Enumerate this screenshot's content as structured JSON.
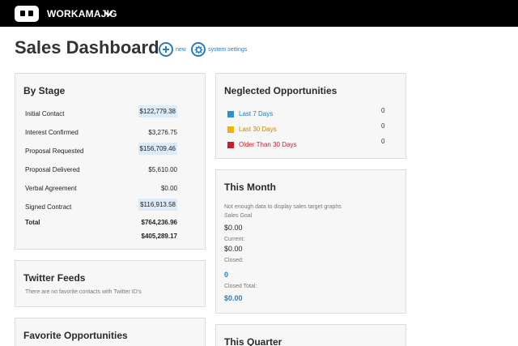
{
  "app": {
    "name": "WORKAMAJIG"
  },
  "page": {
    "title": "Sales Dashboard",
    "actions": [
      {
        "label": "new",
        "icon": "plus-icon"
      },
      {
        "label": "system settings",
        "icon": "gear-icon"
      }
    ]
  },
  "by_stage": {
    "title": "By Stage",
    "rows": [
      {
        "label": "Initial Contact",
        "value": "$122,779.38"
      },
      {
        "label": "Interest Confirmed",
        "value": "$3,276.75"
      },
      {
        "label": "Proposal Requested",
        "value": "$156,709.46"
      },
      {
        "label": "Proposal Delivered",
        "value": "$5,610.00"
      },
      {
        "label": "Verbal Agreement",
        "value": "$0.00"
      },
      {
        "label": "Signed Contract",
        "value": "$116,913.58"
      }
    ],
    "total_label": "Total",
    "total_value": "$764,236.96",
    "subtotal_value": "$405,289.17"
  },
  "twitter": {
    "title": "Twitter Feeds",
    "message": "There are no favorite contacts with Twitter ID's"
  },
  "favorites": {
    "title": "Favorite Opportunities"
  },
  "neglected": {
    "title": "Neglected Opportunities",
    "items": [
      {
        "label": "Last 7 Days",
        "count": "0",
        "color": "#2b8fd8"
      },
      {
        "label": "Last 30 Days",
        "count": "0",
        "color": "#f0b400"
      },
      {
        "label": "Older Than 30 Days",
        "count": "0",
        "color": "#c8202c"
      }
    ]
  },
  "this_month": {
    "title": "This Month",
    "note": "Not enough data to display sales target graphs",
    "goal_label": "Sales Goal",
    "goal_value": "$0.00",
    "current_label": "Current:",
    "current_value": "$0.00",
    "closed_label": "Closed:",
    "closed_value": "0",
    "closed_total_label": "Closed Total:",
    "closed_total_value": "$0.00"
  },
  "this_quarter": {
    "title": "This Quarter"
  }
}
